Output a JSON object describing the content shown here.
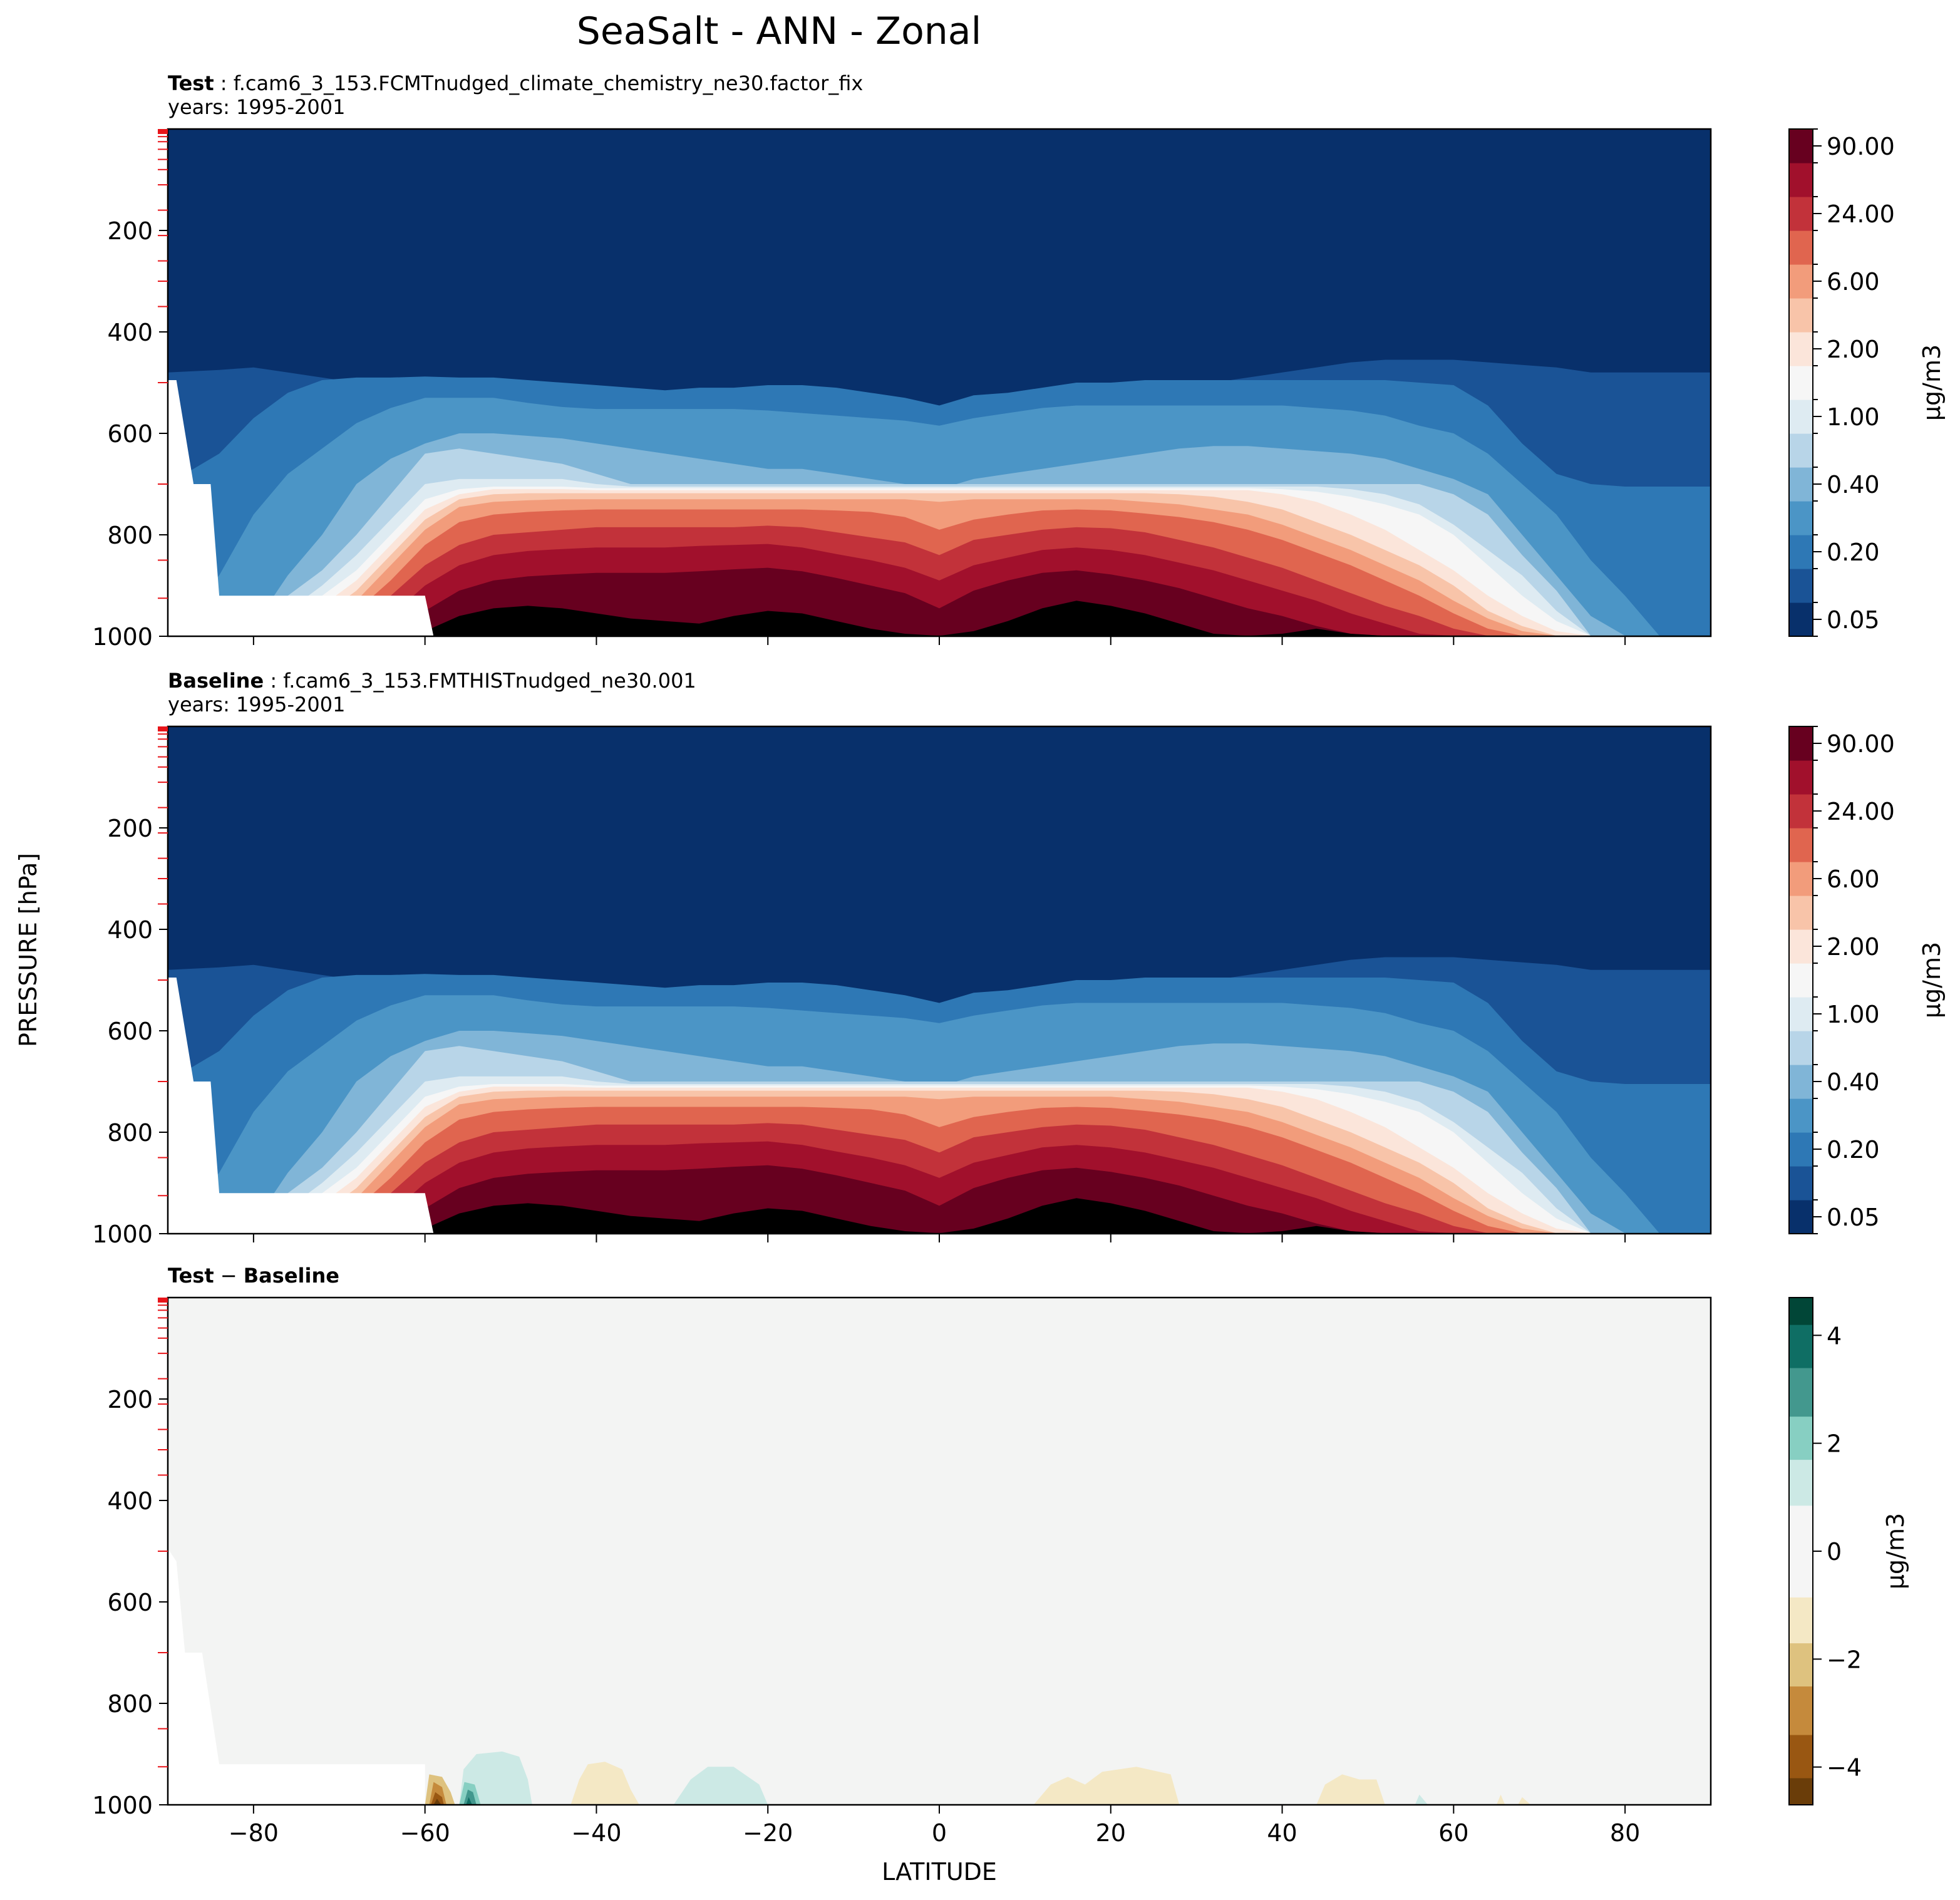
{
  "title": "SeaSalt - ANN - Zonal",
  "x_axis_label": "LATITUDE",
  "y_axis_label": "PRESSURE [hPa]",
  "x_ticks": [
    "−80",
    "−60",
    "−40",
    "−20",
    "0",
    "20",
    "40",
    "60",
    "80"
  ],
  "y_ticks": [
    "200",
    "400",
    "600",
    "800",
    "1000"
  ],
  "panels": [
    {
      "label": "Test",
      "sep": " : ",
      "case": "f.cam6_3_153.FCMTnudged_climate_chemistry_ne30.factor_fix",
      "years": "years: 1995-2001",
      "colorbar_label": "μg/m3",
      "colorbar_ticks": [
        "90.00",
        "24.00",
        "6.00",
        "2.00",
        "1.00",
        "0.40",
        "0.20",
        "0.05"
      ]
    },
    {
      "label": "Baseline",
      "sep": " : ",
      "case": "f.cam6_3_153.FMTHISTnudged_ne30.001",
      "years": "years: 1995-2001",
      "colorbar_label": "μg/m3",
      "colorbar_ticks": [
        "90.00",
        "24.00",
        "6.00",
        "2.00",
        "1.00",
        "0.40",
        "0.20",
        "0.05"
      ]
    },
    {
      "label": "Test",
      "sep": " − ",
      "label2": "Baseline",
      "colorbar_label": "μg/m3",
      "colorbar_ticks": [
        "4",
        "2",
        "0",
        "−2",
        "−4"
      ]
    }
  ],
  "colors": {
    "seq": [
      "#08306b",
      "#1a5396",
      "#2e78b5",
      "#4b95c6",
      "#80b5d7",
      "#b8d5e8",
      "#deebf2",
      "#f6f6f6",
      "#fbe5da",
      "#f8c4a9",
      "#f29c7b",
      "#e0654f",
      "#c2323a",
      "#a1102c",
      "#67001f"
    ],
    "diff": [
      "#6a3d09",
      "#995712",
      "#c58a3c",
      "#dec27f",
      "#f4e8c5",
      "#f5f5f5",
      "#cce9e5",
      "#87cfc2",
      "#43988e",
      "#0f6e64",
      "#014637"
    ],
    "diff_bg": "#f3f4f3",
    "tick_marker": "#e8151a"
  },
  "chart_data": {
    "type": "contour",
    "x_range": [
      -90,
      90
    ],
    "y_range": [
      0,
      1000
    ],
    "y_inverted": true,
    "grid": false,
    "full_panel_contour_levels": [
      0.01,
      0.02,
      0.05,
      0.1,
      0.2,
      0.3,
      0.4,
      0.6,
      1.0,
      1.5,
      2.0,
      4.0,
      6.0,
      12.0,
      24.0,
      48.0,
      90.0
    ],
    "difference_contour_levels": [
      -4.5,
      -4,
      -3,
      -2,
      -1,
      0,
      1,
      2,
      3,
      4,
      4.5
    ],
    "panels": [
      {
        "name": "Test",
        "latitude": [
          -60,
          -40,
          -20,
          0,
          20,
          40,
          60,
          80
        ],
        "near_surface_value_1000hPa": [
          48.0,
          24.0,
          24.0,
          12.0,
          24.0,
          24.0,
          12.0,
          1.0
        ]
      },
      {
        "name": "Baseline",
        "latitude": [
          -60,
          -40,
          -20,
          0,
          20,
          40,
          60,
          80
        ],
        "near_surface_value_1000hPa": [
          48.0,
          24.0,
          24.0,
          12.0,
          24.0,
          24.0,
          12.0,
          1.0
        ]
      },
      {
        "name": "Test − Baseline",
        "features": [
          {
            "lat": -58,
            "pressure": 980,
            "value": -4.0
          },
          {
            "lat": -54,
            "pressure": 975,
            "value": 4.0
          },
          {
            "lat": -51,
            "pressure": 960,
            "value": 1.0
          },
          {
            "lat": -39,
            "pressure": 960,
            "value": -1.0
          },
          {
            "lat": -25,
            "pressure": 965,
            "value": 1.0
          },
          {
            "lat": 15,
            "pressure": 970,
            "value": -1.0
          },
          {
            "lat": 23,
            "pressure": 960,
            "value": -1.0
          },
          {
            "lat": 48,
            "pressure": 975,
            "value": -1.0
          },
          {
            "lat": 56,
            "pressure": 990,
            "value": 1.0
          }
        ]
      }
    ]
  }
}
